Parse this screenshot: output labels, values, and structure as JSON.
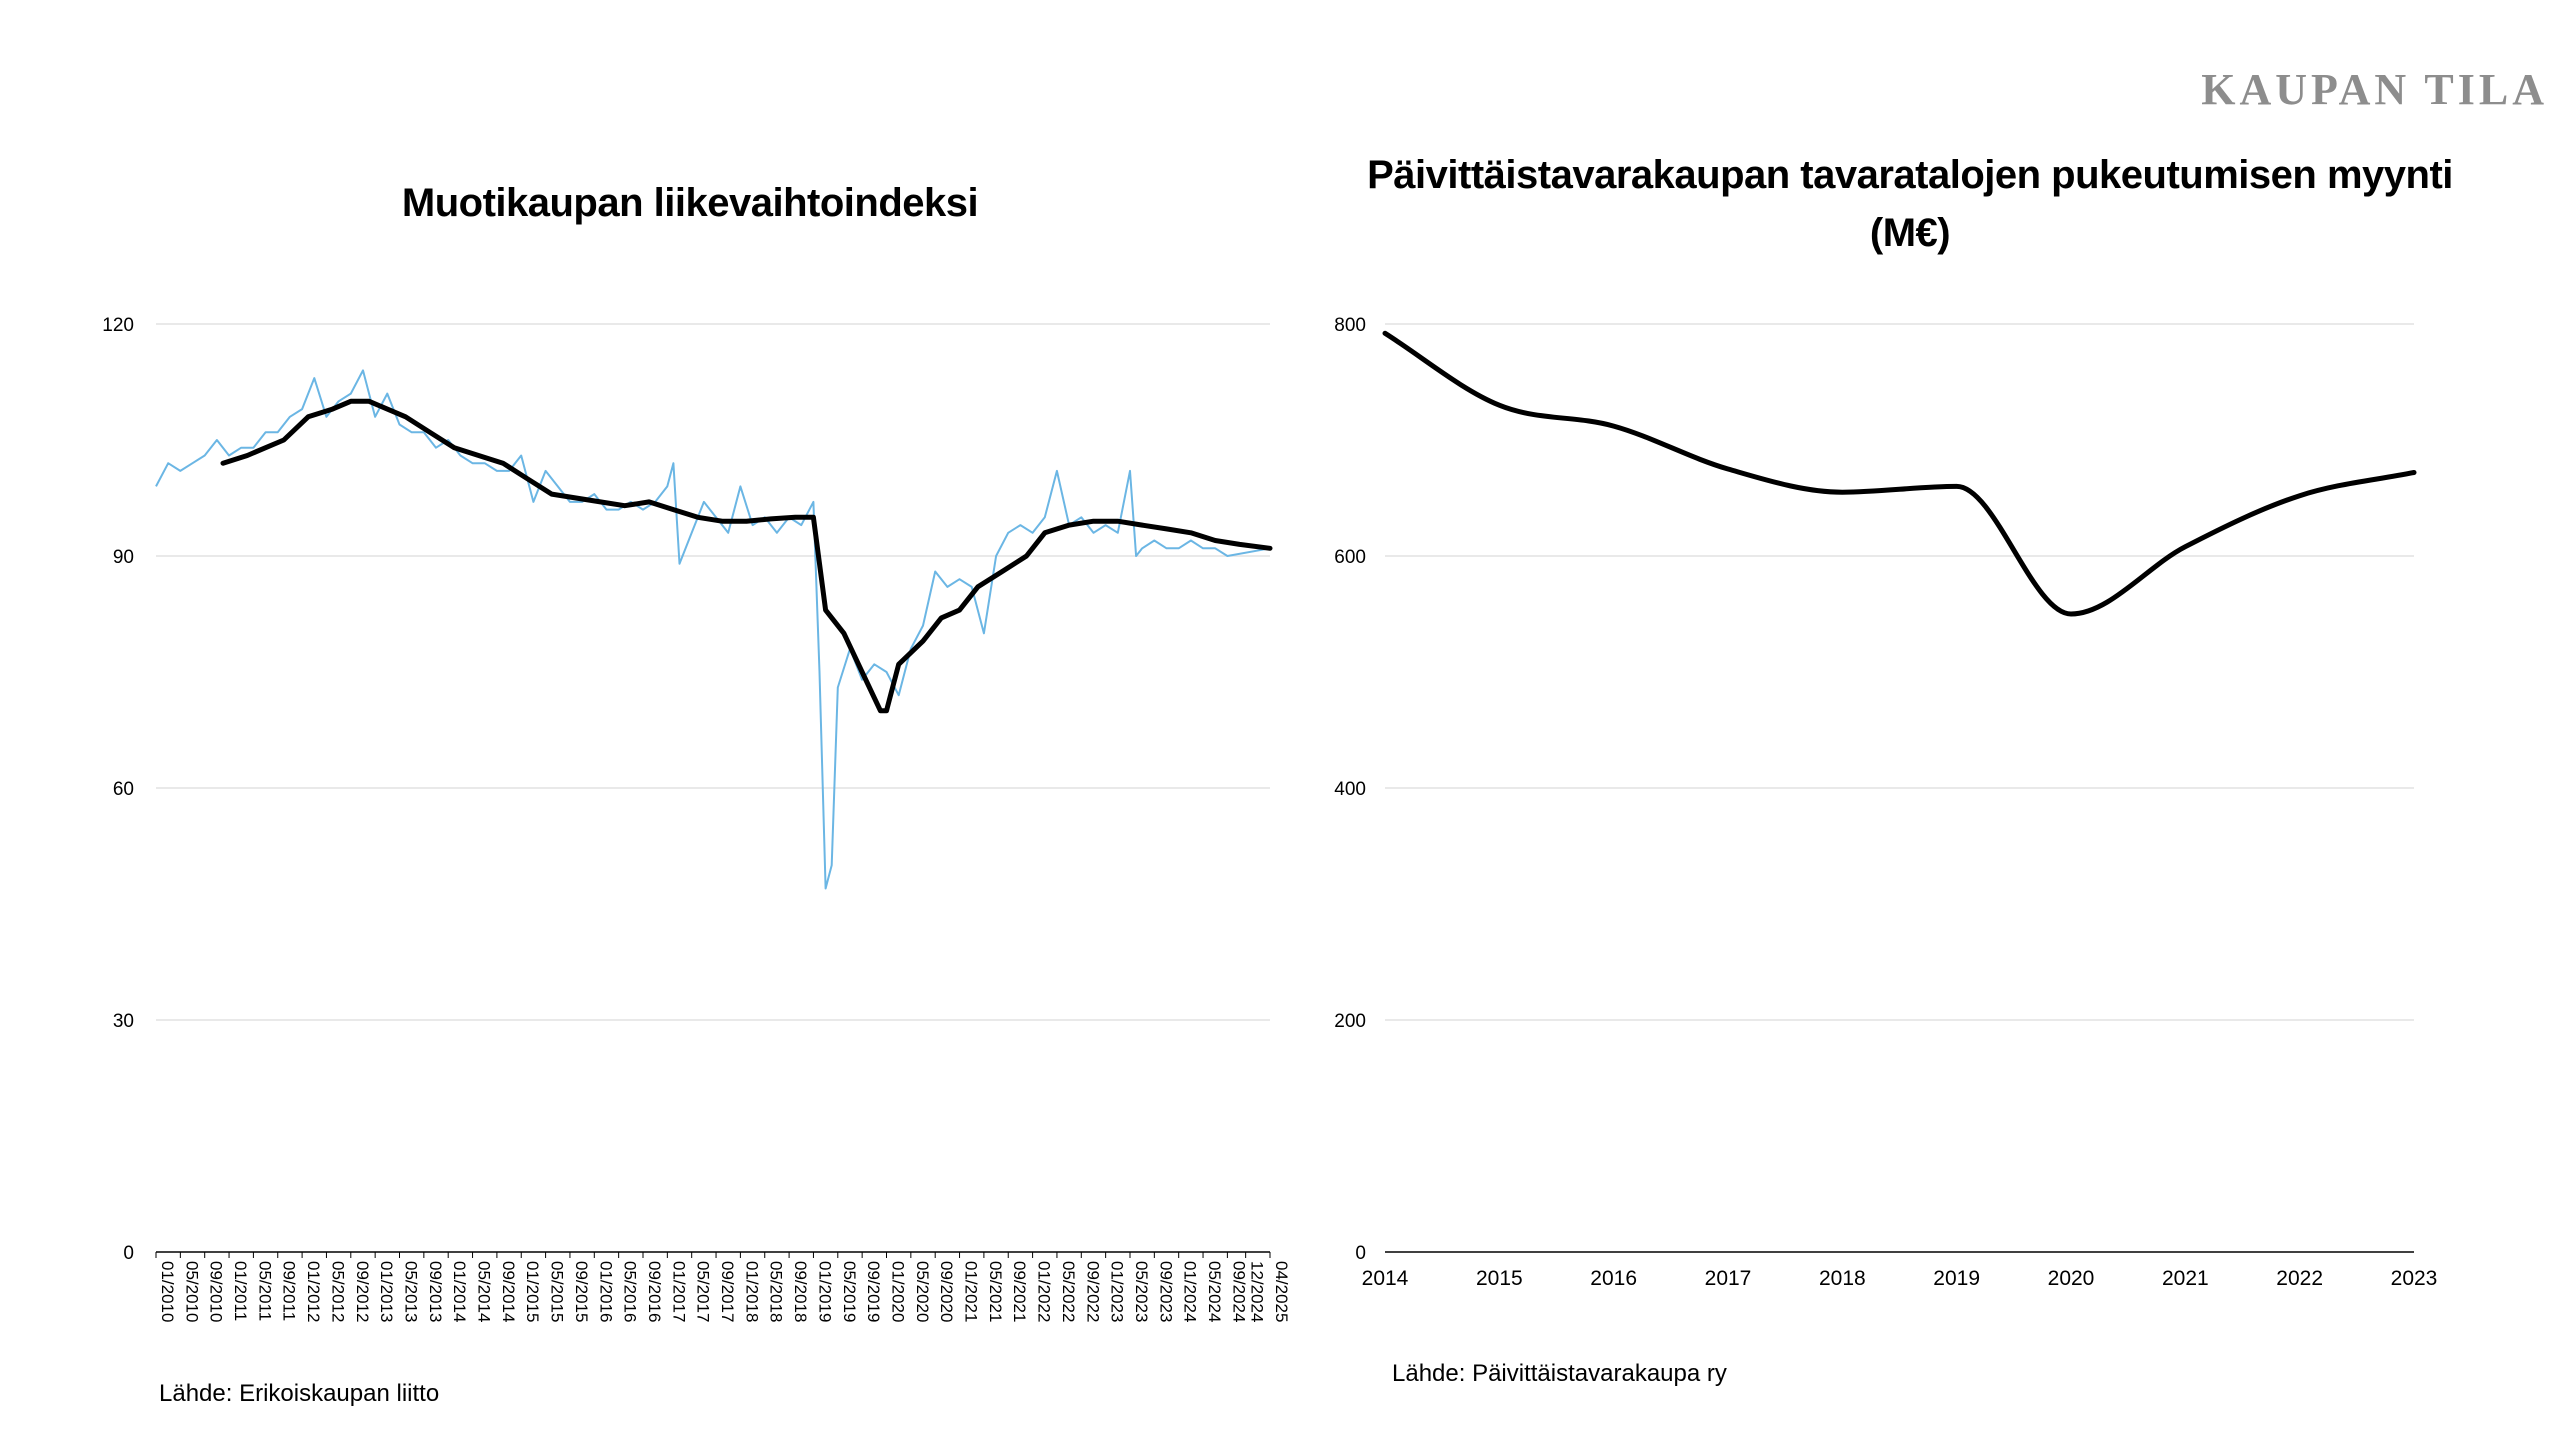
{
  "brand": "KAUPAN TILA",
  "colors": {
    "monthly_line": "#6bb6e4",
    "trend_line": "#000000",
    "grid": "#e2e2e2",
    "brand": "#8d8d8d"
  },
  "chart_data": [
    {
      "type": "line",
      "title": "Muotikaupan liikevaihtoindeksi",
      "source": "Lähde: Erikoiskaupan liitto",
      "ylim": [
        0,
        120
      ],
      "yticks": [
        0,
        30,
        60,
        90,
        120
      ],
      "grid": true,
      "x_tick_labels": [
        "01/2010",
        "05/2010",
        "09/2010",
        "01/2011",
        "05/2011",
        "09/2011",
        "01/2012",
        "05/2012",
        "09/2012",
        "01/2013",
        "05/2013",
        "09/2013",
        "01/2014",
        "05/2014",
        "09/2014",
        "01/2015",
        "05/2015",
        "09/2015",
        "01/2016",
        "05/2016",
        "09/2016",
        "01/2017",
        "05/2017",
        "09/2017",
        "01/2018",
        "05/2018",
        "09/2018",
        "01/2019",
        "05/2019",
        "09/2019",
        "01/2020",
        "05/2020",
        "09/2020",
        "01/2021",
        "05/2021",
        "09/2021",
        "01/2022",
        "05/2022",
        "09/2022",
        "01/2023",
        "05/2023",
        "09/2023",
        "01/2024",
        "05/2024",
        "09/2024",
        "12/2024",
        "04/2025"
      ],
      "series": [
        {
          "style": "monthly",
          "x_start": "01/2010",
          "x_end": "04/2025",
          "points": [
            [
              0,
              99
            ],
            [
              2,
              102
            ],
            [
              4,
              101
            ],
            [
              6,
              102
            ],
            [
              8,
              103
            ],
            [
              10,
              105
            ],
            [
              12,
              103
            ],
            [
              14,
              104
            ],
            [
              16,
              104
            ],
            [
              18,
              106
            ],
            [
              20,
              106
            ],
            [
              22,
              108
            ],
            [
              24,
              109
            ],
            [
              26,
              113
            ],
            [
              28,
              108
            ],
            [
              30,
              110
            ],
            [
              32,
              111
            ],
            [
              34,
              114
            ],
            [
              36,
              108
            ],
            [
              38,
              111
            ],
            [
              40,
              107
            ],
            [
              42,
              106
            ],
            [
              44,
              106
            ],
            [
              46,
              104
            ],
            [
              48,
              105
            ],
            [
              50,
              103
            ],
            [
              52,
              102
            ],
            [
              54,
              102
            ],
            [
              56,
              101
            ],
            [
              58,
              101
            ],
            [
              60,
              103
            ],
            [
              62,
              97
            ],
            [
              64,
              101
            ],
            [
              66,
              99
            ],
            [
              68,
              97
            ],
            [
              70,
              97
            ],
            [
              72,
              98
            ],
            [
              74,
              96
            ],
            [
              76,
              96
            ],
            [
              78,
              97
            ],
            [
              80,
              96
            ],
            [
              82,
              97
            ],
            [
              84,
              99
            ],
            [
              85,
              102
            ],
            [
              86,
              89
            ],
            [
              88,
              93
            ],
            [
              90,
              97
            ],
            [
              92,
              95
            ],
            [
              94,
              93
            ],
            [
              96,
              99
            ],
            [
              98,
              94
            ],
            [
              100,
              95
            ],
            [
              102,
              93
            ],
            [
              104,
              95
            ],
            [
              106,
              94
            ],
            [
              108,
              97
            ],
            [
              109,
              75
            ],
            [
              110,
              47
            ],
            [
              111,
              50
            ],
            [
              112,
              73
            ],
            [
              114,
              78
            ],
            [
              116,
              74
            ],
            [
              118,
              76
            ],
            [
              120,
              75
            ],
            [
              122,
              72
            ],
            [
              124,
              78
            ],
            [
              126,
              81
            ],
            [
              128,
              88
            ],
            [
              130,
              86
            ],
            [
              132,
              87
            ],
            [
              134,
              86
            ],
            [
              136,
              80
            ],
            [
              138,
              90
            ],
            [
              140,
              93
            ],
            [
              142,
              94
            ],
            [
              144,
              93
            ],
            [
              146,
              95
            ],
            [
              148,
              101
            ],
            [
              150,
              94
            ],
            [
              152,
              95
            ],
            [
              154,
              93
            ],
            [
              156,
              94
            ],
            [
              158,
              93
            ],
            [
              160,
              101
            ],
            [
              161,
              90
            ],
            [
              162,
              91
            ],
            [
              164,
              92
            ],
            [
              166,
              91
            ],
            [
              168,
              91
            ],
            [
              170,
              92
            ],
            [
              172,
              91
            ],
            [
              174,
              91
            ],
            [
              176,
              90
            ],
            [
              183,
              91
            ]
          ]
        },
        {
          "style": "trend",
          "x_start": "01/2010",
          "x_end": "04/2025",
          "points": [
            [
              11,
              102
            ],
            [
              15,
              103
            ],
            [
              18,
              104
            ],
            [
              21,
              105
            ],
            [
              25,
              108
            ],
            [
              29,
              109
            ],
            [
              32,
              110
            ],
            [
              35,
              110
            ],
            [
              38,
              109
            ],
            [
              41,
              108
            ],
            [
              45,
              106
            ],
            [
              49,
              104
            ],
            [
              53,
              103
            ],
            [
              57,
              102
            ],
            [
              61,
              100
            ],
            [
              65,
              98
            ],
            [
              69,
              97.5
            ],
            [
              73,
              97
            ],
            [
              77,
              96.5
            ],
            [
              81,
              97
            ],
            [
              85,
              96
            ],
            [
              89,
              95
            ],
            [
              93,
              94.5
            ],
            [
              97,
              94.5
            ],
            [
              101,
              94.8
            ],
            [
              105,
              95
            ],
            [
              108,
              95
            ],
            [
              110,
              83
            ],
            [
              113,
              80
            ],
            [
              116,
              75
            ],
            [
              119,
              70
            ],
            [
              120,
              70
            ],
            [
              122,
              76
            ],
            [
              126,
              79
            ],
            [
              129,
              82
            ],
            [
              132,
              83
            ],
            [
              135,
              86
            ],
            [
              139,
              88
            ],
            [
              143,
              90
            ],
            [
              146,
              93
            ],
            [
              150,
              94
            ],
            [
              154,
              94.5
            ],
            [
              158,
              94.5
            ],
            [
              162,
              94
            ],
            [
              166,
              93.5
            ],
            [
              170,
              93
            ],
            [
              174,
              92
            ],
            [
              178,
              91.5
            ],
            [
              183,
              91
            ]
          ]
        }
      ]
    },
    {
      "type": "line",
      "title": "Päivittäistavarakaupan tavaratalojen pukeutumisen myynti (M€)",
      "source": "Lähde: Päivittäistavarakaupa ry",
      "ylim": [
        0,
        800
      ],
      "yticks": [
        0,
        200,
        400,
        600,
        800
      ],
      "grid": true,
      "categories": [
        "2014",
        "2015",
        "2016",
        "2017",
        "2018",
        "2019",
        "2020",
        "2021",
        "2022",
        "2023"
      ],
      "x_tick_labels": [
        "2014",
        "2015",
        "2016",
        "2017",
        "2018",
        "2019",
        "2020",
        "2021",
        "2022",
        "2023"
      ],
      "series": [
        {
          "values": [
            792,
            730,
            712,
            675,
            655,
            660,
            550,
            608,
            652,
            672
          ]
        }
      ]
    }
  ]
}
